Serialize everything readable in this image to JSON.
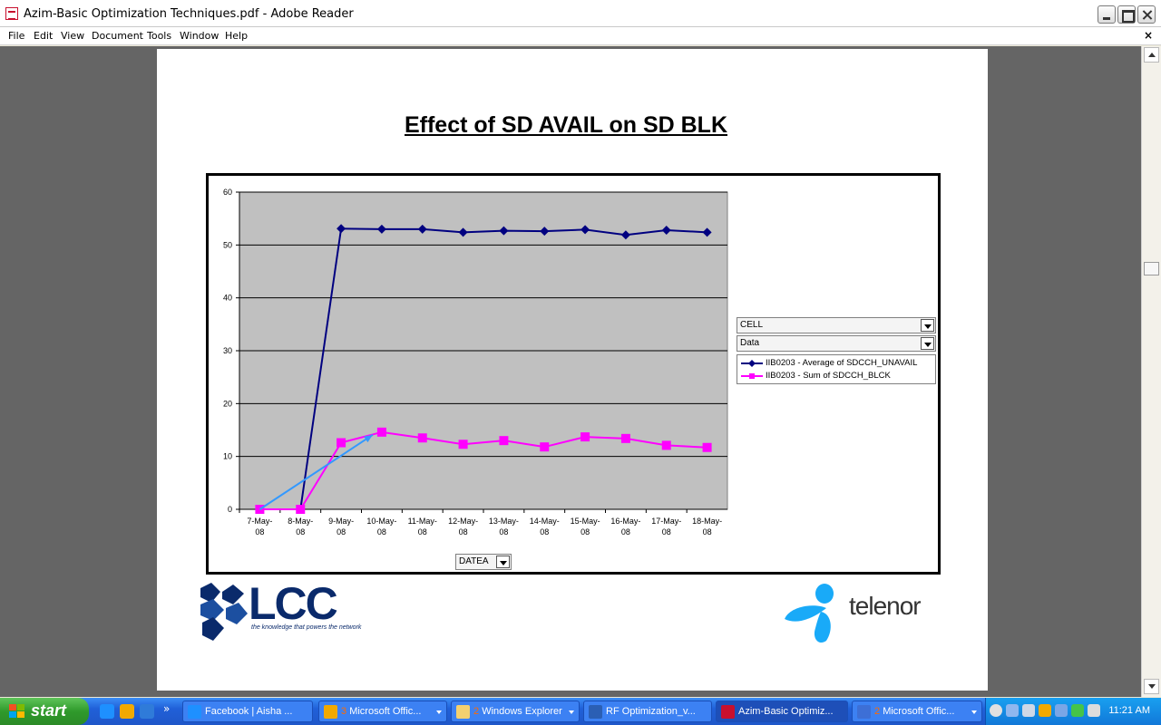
{
  "window": {
    "title": "Azim-Basic Optimization Techniques.pdf - Adobe Reader"
  },
  "menu": {
    "items": [
      "File",
      "Edit",
      "View",
      "Document",
      "Tools",
      "Window",
      "Help"
    ],
    "close_glyph": "×"
  },
  "slide": {
    "title": "Effect of SD  AVAIL on SD BLK",
    "lcc": {
      "text": "LCC",
      "tagline": "the knowledge that powers the network"
    },
    "telenor": {
      "text": "telenor"
    }
  },
  "pivot": {
    "cell_label": "CELL",
    "data_label": "Data",
    "field_label": "DATEA"
  },
  "chart_data": {
    "type": "line",
    "title": "",
    "xlabel": "",
    "ylabel": "",
    "categories": [
      "7-May-08",
      "8-May-08",
      "9-May-08",
      "10-May-08",
      "11-May-08",
      "12-May-08",
      "13-May-08",
      "14-May-08",
      "15-May-08",
      "16-May-08",
      "17-May-08",
      "18-May-08"
    ],
    "category_lines": [
      [
        "7-May-",
        "08"
      ],
      [
        "8-May-",
        "08"
      ],
      [
        "9-May-",
        "08"
      ],
      [
        "10-May-",
        "08"
      ],
      [
        "11-May-",
        "08"
      ],
      [
        "12-May-",
        "08"
      ],
      [
        "13-May-",
        "08"
      ],
      [
        "14-May-",
        "08"
      ],
      [
        "15-May-",
        "08"
      ],
      [
        "16-May-",
        "08"
      ],
      [
        "17-May-",
        "08"
      ],
      [
        "18-May-",
        "08"
      ]
    ],
    "ylim": [
      0,
      60
    ],
    "yticks": [
      0,
      10,
      20,
      30,
      40,
      50,
      60
    ],
    "grid": true,
    "plot_background": "#c0c0c0",
    "legend_position": "right",
    "series": [
      {
        "name": "IIB0203 - Average of SDCCH_UNAVAIL",
        "color": "#000080",
        "marker": "diamond",
        "values": [
          0,
          0,
          53.1,
          53.0,
          53.0,
          52.4,
          52.7,
          52.6,
          52.9,
          51.9,
          52.8,
          52.4
        ]
      },
      {
        "name": "IIB0203 - Sum of SDCCH_BLCK",
        "color": "#ff00ff",
        "marker": "square",
        "values": [
          0,
          0,
          12.6,
          14.6,
          13.5,
          12.3,
          13.0,
          11.8,
          13.7,
          13.4,
          12.1,
          11.7
        ]
      }
    ],
    "annotations": [
      {
        "type": "arrow",
        "color": "#3399ff",
        "from": {
          "x": "7-May-08",
          "y": 0
        },
        "to": {
          "x": "10-May-08",
          "y": 14.6
        }
      }
    ]
  },
  "taskbar": {
    "start_label": "start",
    "overflow_glyph": "»",
    "tasks": [
      {
        "label": "Facebook | Aisha ...",
        "count": "",
        "arrow": false,
        "active": false,
        "icon_color": "#1e90ff"
      },
      {
        "label": "Microsoft Offic...",
        "count": "3",
        "arrow": true,
        "active": false,
        "icon_color": "#f2a900"
      },
      {
        "label": "Windows Explorer",
        "count": "2",
        "arrow": true,
        "active": false,
        "icon_color": "#f4d06f"
      },
      {
        "label": "RF Optimization_v...",
        "count": "",
        "arrow": false,
        "active": false,
        "icon_color": "#2b5fb4"
      },
      {
        "label": "Azim-Basic Optimiz...",
        "count": "",
        "arrow": false,
        "active": true,
        "icon_color": "#c8102e"
      },
      {
        "label": "Microsoft Offic...",
        "count": "2",
        "arrow": true,
        "active": false,
        "icon_color": "#3d6fd6"
      }
    ],
    "clock": "11:21 AM"
  }
}
